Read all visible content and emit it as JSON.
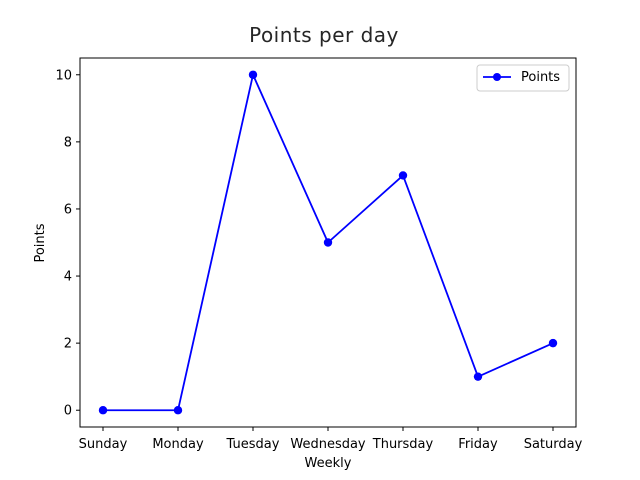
{
  "chart_data": {
    "type": "line",
    "title": "Points per day",
    "xlabel": "Weekly",
    "ylabel": "Points",
    "categories": [
      "Sunday",
      "Monday",
      "Tuesday",
      "Wednesday",
      "Thursday",
      "Friday",
      "Saturday"
    ],
    "series": [
      {
        "name": "Points",
        "values": [
          0,
          0,
          10,
          5,
          7,
          1,
          2
        ],
        "color": "#0000ff",
        "marker": "circle"
      }
    ],
    "ylim": [
      -0.5,
      10.5
    ],
    "yticks": [
      0,
      2,
      4,
      6,
      8,
      10
    ],
    "grid": false,
    "legend": "top-right"
  }
}
